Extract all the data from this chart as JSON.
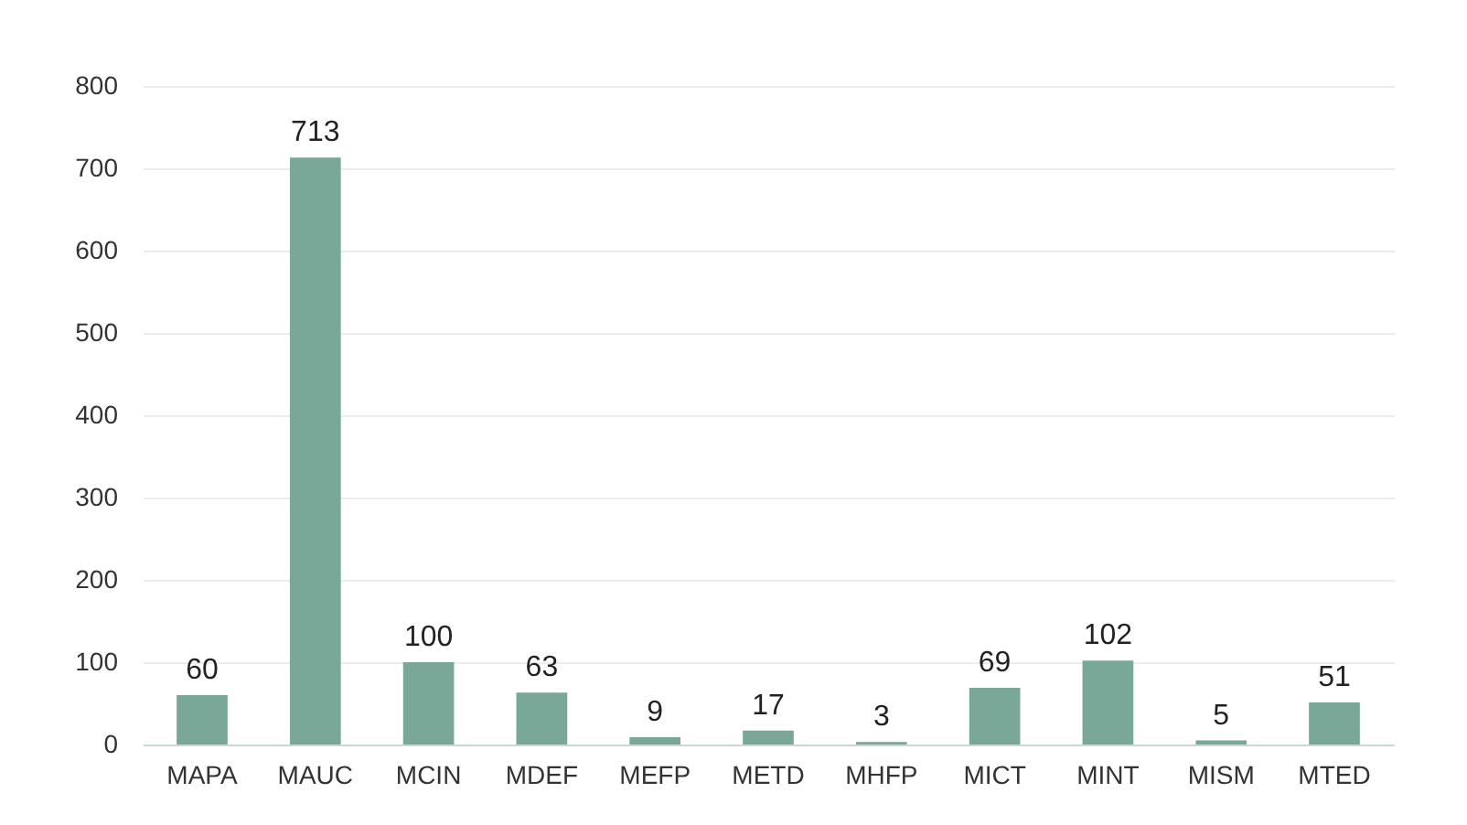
{
  "chart_data": {
    "type": "bar",
    "categories": [
      "MAPA",
      "MAUC",
      "MCIN",
      "MDEF",
      "MEFP",
      "METD",
      "MHFP",
      "MICT",
      "MINT",
      "MISM",
      "MTED"
    ],
    "values": [
      60,
      713,
      100,
      63,
      9,
      17,
      3,
      69,
      102,
      5,
      51
    ],
    "color": "#7aa898",
    "ylim": [
      0,
      800
    ],
    "yticks": [
      0,
      100,
      200,
      300,
      400,
      500,
      600,
      700,
      800
    ],
    "grid": "y",
    "data_labels": true
  }
}
